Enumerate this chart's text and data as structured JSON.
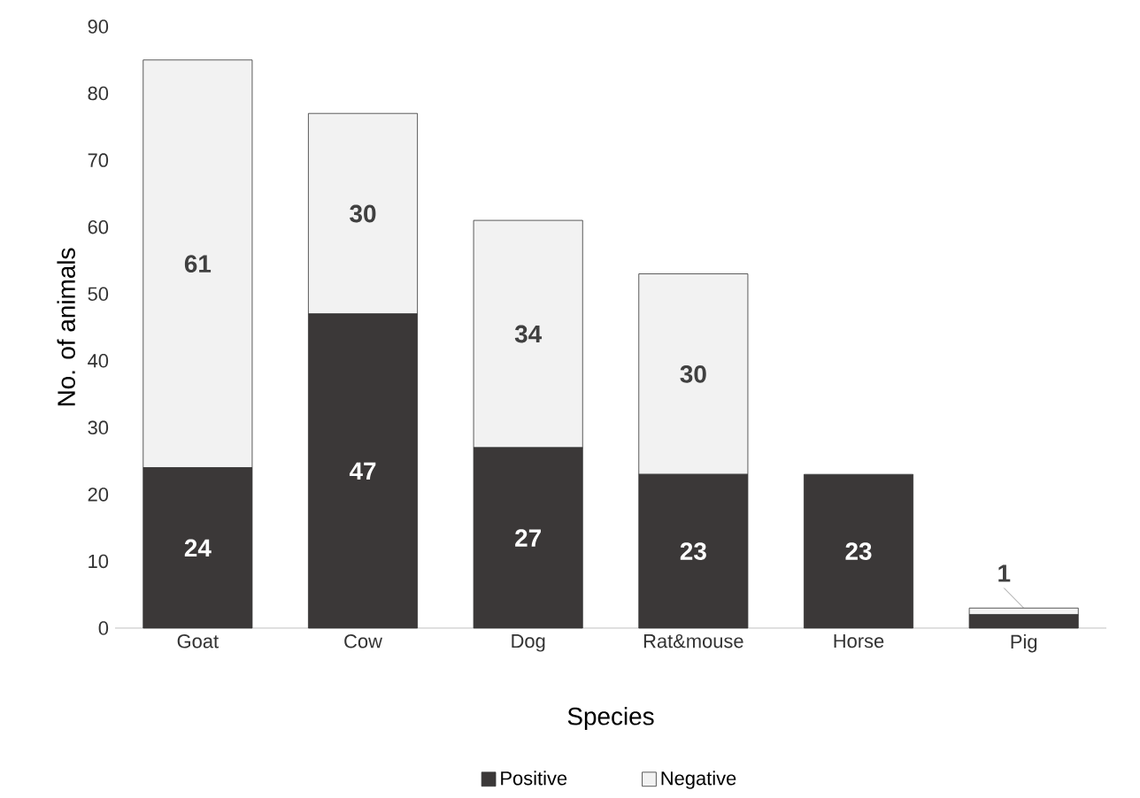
{
  "chart_data": {
    "type": "bar",
    "stacked": true,
    "xlabel": "Species",
    "ylabel": "No. of animals",
    "categories": [
      "Goat",
      "Cow",
      "Dog",
      "Rat&mouse",
      "Horse",
      "Pig"
    ],
    "series": [
      {
        "name": "Positive",
        "color": "#3b3838",
        "values": [
          24,
          47,
          27,
          23,
          23,
          2
        ],
        "value_labels": [
          "24",
          "47",
          "27",
          "23",
          "23",
          null
        ]
      },
      {
        "name": "Negative",
        "color": "#f2f2f2",
        "values": [
          61,
          30,
          34,
          30,
          null,
          1
        ],
        "value_labels": [
          "61",
          "30",
          "34",
          "30",
          null,
          "1"
        ]
      }
    ],
    "ylim": [
      0,
      90
    ],
    "yticks": [
      0,
      10,
      20,
      30,
      40,
      50,
      60,
      70,
      80,
      90
    ],
    "grid": false,
    "legend": "bottom"
  }
}
